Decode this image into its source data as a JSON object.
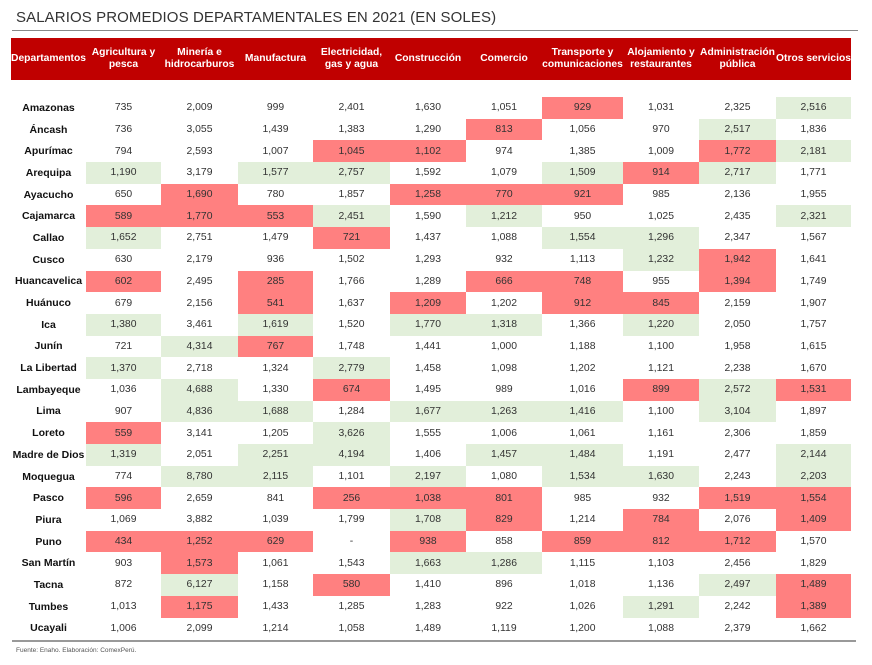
{
  "title": "SALARIOS PROMEDIOS DEPARTAMENTALES EN 2021 (EN SOLES)",
  "source": "Fuente: Enaho. Elaboración: ComexPerú.",
  "colors": {
    "header_bg": "#c00000",
    "low_highlight": "#ff8080",
    "high_highlight": "#e2efda"
  },
  "columns": [
    "Departamentos",
    "Agricultura y pesca",
    "Minería e hidrocarburos",
    "Manufactura",
    "Electricidad, gas y agua",
    "Construcción",
    "Comercio",
    "Transporte y comunicaciones",
    "Alojamiento y restaurantes",
    "Administración pública",
    "Otros servicios"
  ],
  "rows": [
    {
      "dept": "Amazonas",
      "values": [
        "735",
        "2,009",
        "999",
        "2,401",
        "1,630",
        "1,051",
        "929",
        "1,031",
        "2,325",
        "2,516"
      ],
      "hl": [
        "",
        "",
        "",
        "",
        "",
        "",
        "r",
        "",
        "",
        "g"
      ]
    },
    {
      "dept": "Áncash",
      "values": [
        "736",
        "3,055",
        "1,439",
        "1,383",
        "1,290",
        "813",
        "1,056",
        "970",
        "2,517",
        "1,836"
      ],
      "hl": [
        "",
        "",
        "",
        "",
        "",
        "r",
        "",
        "",
        "g",
        ""
      ]
    },
    {
      "dept": "Apurímac",
      "values": [
        "794",
        "2,593",
        "1,007",
        "1,045",
        "1,102",
        "974",
        "1,385",
        "1,009",
        "1,772",
        "2,181"
      ],
      "hl": [
        "",
        "",
        "",
        "r",
        "r",
        "",
        "",
        "",
        "r",
        "g"
      ]
    },
    {
      "dept": "Arequipa",
      "values": [
        "1,190",
        "3,179",
        "1,577",
        "2,757",
        "1,592",
        "1,079",
        "1,509",
        "914",
        "2,717",
        "1,771"
      ],
      "hl": [
        "g",
        "",
        "g",
        "g",
        "",
        "",
        "g",
        "r",
        "g",
        ""
      ]
    },
    {
      "dept": "Ayacucho",
      "values": [
        "650",
        "1,690",
        "780",
        "1,857",
        "1,258",
        "770",
        "921",
        "985",
        "2,136",
        "1,955"
      ],
      "hl": [
        "",
        "r",
        "",
        "",
        "r",
        "r",
        "r",
        "",
        "",
        ""
      ]
    },
    {
      "dept": "Cajamarca",
      "values": [
        "589",
        "1,770",
        "553",
        "2,451",
        "1,590",
        "1,212",
        "950",
        "1,025",
        "2,435",
        "2,321"
      ],
      "hl": [
        "r",
        "r",
        "r",
        "g",
        "",
        "g",
        "",
        "",
        "",
        "g"
      ]
    },
    {
      "dept": "Callao",
      "values": [
        "1,652",
        "2,751",
        "1,479",
        "721",
        "1,437",
        "1,088",
        "1,554",
        "1,296",
        "2,347",
        "1,567"
      ],
      "hl": [
        "g",
        "",
        "",
        "r",
        "",
        "",
        "g",
        "g",
        "",
        ""
      ]
    },
    {
      "dept": "Cusco",
      "values": [
        "630",
        "2,179",
        "936",
        "1,502",
        "1,293",
        "932",
        "1,113",
        "1,232",
        "1,942",
        "1,641"
      ],
      "hl": [
        "",
        "",
        "",
        "",
        "",
        "",
        "",
        "g",
        "r",
        ""
      ]
    },
    {
      "dept": "Huancavelica",
      "values": [
        "602",
        "2,495",
        "285",
        "1,766",
        "1,289",
        "666",
        "748",
        "955",
        "1,394",
        "1,749"
      ],
      "hl": [
        "r",
        "",
        "r",
        "",
        "",
        "r",
        "r",
        "",
        "r",
        ""
      ]
    },
    {
      "dept": "Huánuco",
      "values": [
        "679",
        "2,156",
        "541",
        "1,637",
        "1,209",
        "1,202",
        "912",
        "845",
        "2,159",
        "1,907"
      ],
      "hl": [
        "",
        "",
        "r",
        "",
        "r",
        "",
        "r",
        "r",
        "",
        ""
      ]
    },
    {
      "dept": "Ica",
      "values": [
        "1,380",
        "3,461",
        "1,619",
        "1,520",
        "1,770",
        "1,318",
        "1,366",
        "1,220",
        "2,050",
        "1,757"
      ],
      "hl": [
        "g",
        "",
        "g",
        "",
        "g",
        "g",
        "",
        "g",
        "",
        ""
      ]
    },
    {
      "dept": "Junín",
      "values": [
        "721",
        "4,314",
        "767",
        "1,748",
        "1,441",
        "1,000",
        "1,188",
        "1,100",
        "1,958",
        "1,615"
      ],
      "hl": [
        "",
        "g",
        "r",
        "",
        "",
        "",
        "",
        "",
        "",
        ""
      ]
    },
    {
      "dept": "La Libertad",
      "values": [
        "1,370",
        "2,718",
        "1,324",
        "2,779",
        "1,458",
        "1,098",
        "1,202",
        "1,121",
        "2,238",
        "1,670"
      ],
      "hl": [
        "g",
        "",
        "",
        "g",
        "",
        "",
        "",
        "",
        "",
        ""
      ]
    },
    {
      "dept": "Lambayeque",
      "values": [
        "1,036",
        "4,688",
        "1,330",
        "674",
        "1,495",
        "989",
        "1,016",
        "899",
        "2,572",
        "1,531"
      ],
      "hl": [
        "",
        "g",
        "",
        "r",
        "",
        "",
        "",
        "r",
        "g",
        "r"
      ]
    },
    {
      "dept": "Lima",
      "values": [
        "907",
        "4,836",
        "1,688",
        "1,284",
        "1,677",
        "1,263",
        "1,416",
        "1,100",
        "3,104",
        "1,897"
      ],
      "hl": [
        "",
        "g",
        "g",
        "",
        "g",
        "g",
        "g",
        "",
        "g",
        ""
      ]
    },
    {
      "dept": "Loreto",
      "values": [
        "559",
        "3,141",
        "1,205",
        "3,626",
        "1,555",
        "1,006",
        "1,061",
        "1,161",
        "2,306",
        "1,859"
      ],
      "hl": [
        "r",
        "",
        "",
        "g",
        "",
        "",
        "",
        "",
        "",
        ""
      ]
    },
    {
      "dept": "Madre de Dios",
      "values": [
        "1,319",
        "2,051",
        "2,251",
        "4,194",
        "1,406",
        "1,457",
        "1,484",
        "1,191",
        "2,477",
        "2,144"
      ],
      "hl": [
        "g",
        "",
        "g",
        "g",
        "",
        "g",
        "g",
        "",
        "",
        "g"
      ]
    },
    {
      "dept": "Moquegua",
      "values": [
        "774",
        "8,780",
        "2,115",
        "1,101",
        "2,197",
        "1,080",
        "1,534",
        "1,630",
        "2,243",
        "2,203"
      ],
      "hl": [
        "",
        "g",
        "g",
        "",
        "g",
        "",
        "g",
        "g",
        "",
        "g"
      ]
    },
    {
      "dept": "Pasco",
      "values": [
        "596",
        "2,659",
        "841",
        "256",
        "1,038",
        "801",
        "985",
        "932",
        "1,519",
        "1,554"
      ],
      "hl": [
        "r",
        "",
        "",
        "r",
        "r",
        "r",
        "",
        "",
        "r",
        "r"
      ]
    },
    {
      "dept": "Piura",
      "values": [
        "1,069",
        "3,882",
        "1,039",
        "1,799",
        "1,708",
        "829",
        "1,214",
        "784",
        "2,076",
        "1,409"
      ],
      "hl": [
        "",
        "",
        "",
        "",
        "g",
        "r",
        "",
        "r",
        "",
        "r"
      ]
    },
    {
      "dept": "Puno",
      "values": [
        "434",
        "1,252",
        "629",
        "-",
        "938",
        "858",
        "859",
        "812",
        "1,712",
        "1,570"
      ],
      "hl": [
        "r",
        "r",
        "r",
        "",
        "r",
        "",
        "r",
        "r",
        "r",
        ""
      ]
    },
    {
      "dept": "San Martín",
      "values": [
        "903",
        "1,573",
        "1,061",
        "1,543",
        "1,663",
        "1,286",
        "1,115",
        "1,103",
        "2,456",
        "1,829"
      ],
      "hl": [
        "",
        "r",
        "",
        "",
        "g",
        "g",
        "",
        "",
        "",
        ""
      ]
    },
    {
      "dept": "Tacna",
      "values": [
        "872",
        "6,127",
        "1,158",
        "580",
        "1,410",
        "896",
        "1,018",
        "1,136",
        "2,497",
        "1,489"
      ],
      "hl": [
        "",
        "g",
        "",
        "r",
        "",
        "",
        "",
        "",
        "g",
        "r"
      ]
    },
    {
      "dept": "Tumbes",
      "values": [
        "1,013",
        "1,175",
        "1,433",
        "1,285",
        "1,283",
        "922",
        "1,026",
        "1,291",
        "2,242",
        "1,389"
      ],
      "hl": [
        "",
        "r",
        "",
        "",
        "",
        "",
        "",
        "g",
        "",
        "r"
      ]
    },
    {
      "dept": "Ucayali",
      "values": [
        "1,006",
        "2,099",
        "1,214",
        "1,058",
        "1,489",
        "1,119",
        "1,200",
        "1,088",
        "2,379",
        "1,662"
      ],
      "hl": [
        "",
        "",
        "",
        "",
        "",
        "",
        "",
        "",
        "",
        ""
      ]
    }
  ]
}
